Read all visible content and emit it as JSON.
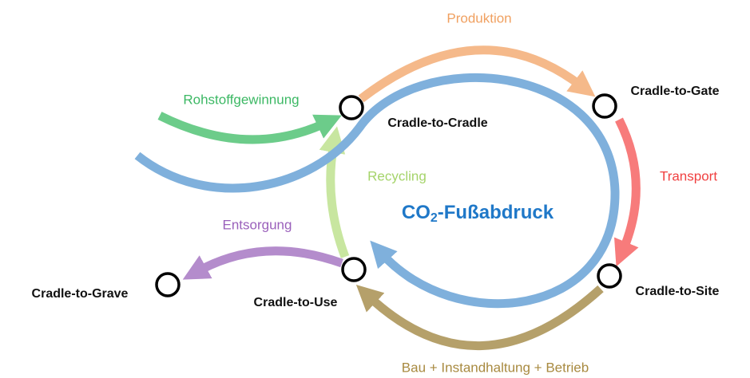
{
  "nodes": [
    {
      "label": "Cradle-to-Cradle"
    },
    {
      "label": "Cradle-to-Gate"
    },
    {
      "label": "Cradle-to-Site"
    },
    {
      "label": "Cradle-to-Use"
    },
    {
      "label": "Cradle-to-Grave"
    }
  ],
  "edges": [
    {
      "label": "Produktion"
    },
    {
      "label": "Transport"
    },
    {
      "label": "Bau + Instandhaltung + Betrieb"
    },
    {
      "label": "Recycling"
    },
    {
      "label": "Entsorgung"
    },
    {
      "label": "Rohstoffgewinnung"
    }
  ],
  "center": {
    "prefix": "CO",
    "subscript": "2",
    "suffix": "-Fußabdruck"
  }
}
